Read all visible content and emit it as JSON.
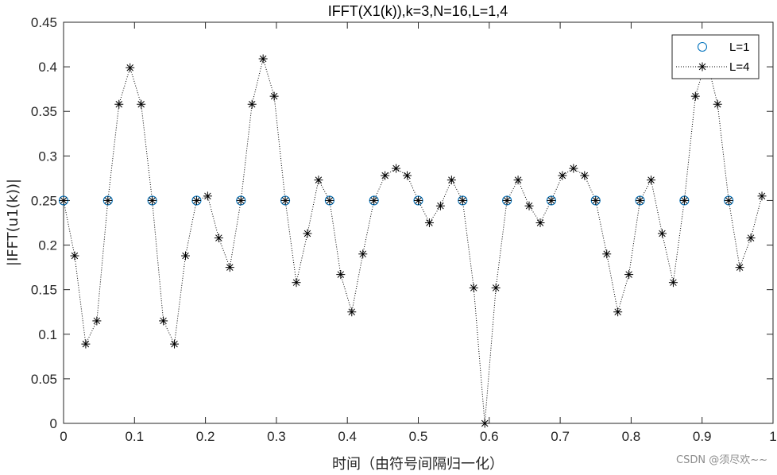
{
  "chart_data": {
    "type": "scatter",
    "title": "IFFT(X1(k)),k=3,N=16,L=1,4",
    "xlabel": "时间（由符号间隔归一化）",
    "ylabel": "|IFFT(u1(k))|",
    "xlim": [
      0,
      1
    ],
    "ylim": [
      0,
      0.45
    ],
    "xticks": [
      "0",
      "0.1",
      "0.2",
      "0.3",
      "0.4",
      "0.5",
      "0.6",
      "0.7",
      "0.8",
      "0.9",
      "1"
    ],
    "yticks": [
      "0",
      "0.05",
      "0.1",
      "0.15",
      "0.2",
      "0.25",
      "0.3",
      "0.35",
      "0.4",
      "0.45"
    ],
    "grid": false,
    "legend_position": "top-right",
    "colors": {
      "L1": "#0072BD",
      "L4": "#000000",
      "axes": "#262626"
    },
    "series": [
      {
        "name": "L=1",
        "marker": "circle",
        "line": "none",
        "x": [
          0,
          0.0625,
          0.125,
          0.1875,
          0.25,
          0.3125,
          0.375,
          0.4375,
          0.5,
          0.5625,
          0.625,
          0.6875,
          0.75,
          0.8125,
          0.875,
          0.9375
        ],
        "y": [
          0.25,
          0.25,
          0.25,
          0.25,
          0.25,
          0.25,
          0.25,
          0.25,
          0.25,
          0.25,
          0.25,
          0.25,
          0.25,
          0.25,
          0.25,
          0.25
        ]
      },
      {
        "name": "L=4",
        "marker": "asterisk",
        "line": "dotted",
        "x": [
          0,
          0.015625,
          0.03125,
          0.046875,
          0.0625,
          0.078125,
          0.09375,
          0.109375,
          0.125,
          0.140625,
          0.15625,
          0.171875,
          0.1875,
          0.203125,
          0.21875,
          0.234375,
          0.25,
          0.265625,
          0.28125,
          0.296875,
          0.3125,
          0.328125,
          0.34375,
          0.359375,
          0.375,
          0.390625,
          0.40625,
          0.421875,
          0.4375,
          0.453125,
          0.46875,
          0.484375,
          0.5,
          0.515625,
          0.53125,
          0.546875,
          0.5625,
          0.578125,
          0.59375,
          0.609375,
          0.625,
          0.640625,
          0.65625,
          0.671875,
          0.6875,
          0.703125,
          0.71875,
          0.734375,
          0.75,
          0.765625,
          0.78125,
          0.796875,
          0.8125,
          0.828125,
          0.84375,
          0.859375,
          0.875,
          0.890625,
          0.90625,
          0.921875,
          0.9375,
          0.953125,
          0.96875,
          0.984375
        ],
        "y": [
          0.25,
          0.188,
          0.089,
          0.115,
          0.25,
          0.358,
          0.399,
          0.358,
          0.25,
          0.115,
          0.089,
          0.188,
          0.25,
          0.255,
          0.208,
          0.175,
          0.25,
          0.358,
          0.409,
          0.367,
          0.25,
          0.158,
          0.213,
          0.273,
          0.25,
          0.167,
          0.125,
          0.19,
          0.25,
          0.278,
          0.286,
          0.278,
          0.25,
          0.225,
          0.244,
          0.273,
          0.25,
          0.152,
          0.0,
          0.152,
          0.25,
          0.273,
          0.244,
          0.225,
          0.25,
          0.278,
          0.286,
          0.278,
          0.25,
          0.19,
          0.125,
          0.167,
          0.25,
          0.273,
          0.213,
          0.158,
          0.25,
          0.367,
          0.409,
          0.358,
          0.25,
          0.175,
          0.208,
          0.255
        ]
      }
    ]
  },
  "watermark": "CSDN @须尽欢~~"
}
